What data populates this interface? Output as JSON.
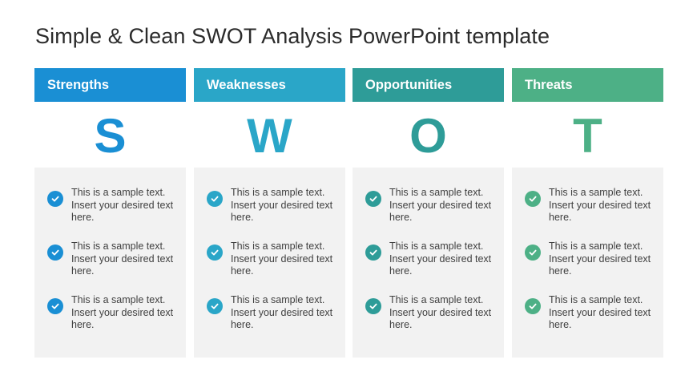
{
  "title": "Simple & Clean SWOT Analysis PowerPoint template",
  "columns": [
    {
      "header": "Strengths",
      "letter": "S",
      "color": "#1a8fd4",
      "items": [
        "This is a sample text. Insert your desired text here.",
        "This is a sample text. Insert your desired text here.",
        "This is a sample text. Insert your desired text here."
      ]
    },
    {
      "header": "Weaknesses",
      "letter": "W",
      "color": "#2aa6c8",
      "items": [
        "This is a sample text. Insert your desired text here.",
        "This is a sample text. Insert your desired text here.",
        "This is a sample text. Insert your desired text here."
      ]
    },
    {
      "header": "Opportunities",
      "letter": "O",
      "color": "#2e9c98",
      "items": [
        "This is a sample text. Insert your desired text here.",
        "This is a sample text. Insert your desired text here.",
        "This is a sample text. Insert your desired text here."
      ]
    },
    {
      "header": "Threats",
      "letter": "T",
      "color": "#4db086",
      "items": [
        "This is a sample text. Insert your desired text here.",
        "This is a sample text. Insert your desired text here.",
        "This is a sample text. Insert your desired text here."
      ]
    }
  ],
  "icons": {
    "check": "check-circle-icon"
  }
}
